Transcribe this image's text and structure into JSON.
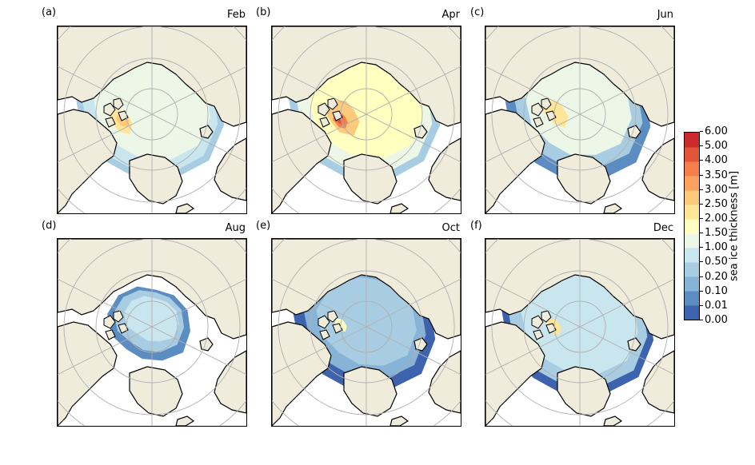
{
  "panels": [
    {
      "letter": "(a)",
      "month": "Feb"
    },
    {
      "letter": "(b)",
      "month": "Apr"
    },
    {
      "letter": "(c)",
      "month": "Jun"
    },
    {
      "letter": "(d)",
      "month": "Aug"
    },
    {
      "letter": "(e)",
      "month": "Oct"
    },
    {
      "letter": "(f)",
      "month": "Dec"
    }
  ],
  "colorbar": {
    "label": "sea ice thickness [m]",
    "ticks": [
      "0.00",
      "0.01",
      "0.10",
      "0.20",
      "0.50",
      "1.00",
      "1.50",
      "2.00",
      "2.50",
      "3.00",
      "3.50",
      "4.00",
      "5.00",
      "6.00"
    ],
    "colors": [
      "#3d62ae",
      "#5b8cc2",
      "#86b3d6",
      "#a8cde3",
      "#c9e6ef",
      "#ecf7e8",
      "#ffffbf",
      "#fee597",
      "#fdc97a",
      "#fba25e",
      "#f47f4b",
      "#e25539",
      "#cb2c2b"
    ]
  },
  "colors": {
    "land": "#efecdc",
    "ocean": "#ffffff",
    "grid": "#b0b0b0"
  }
}
